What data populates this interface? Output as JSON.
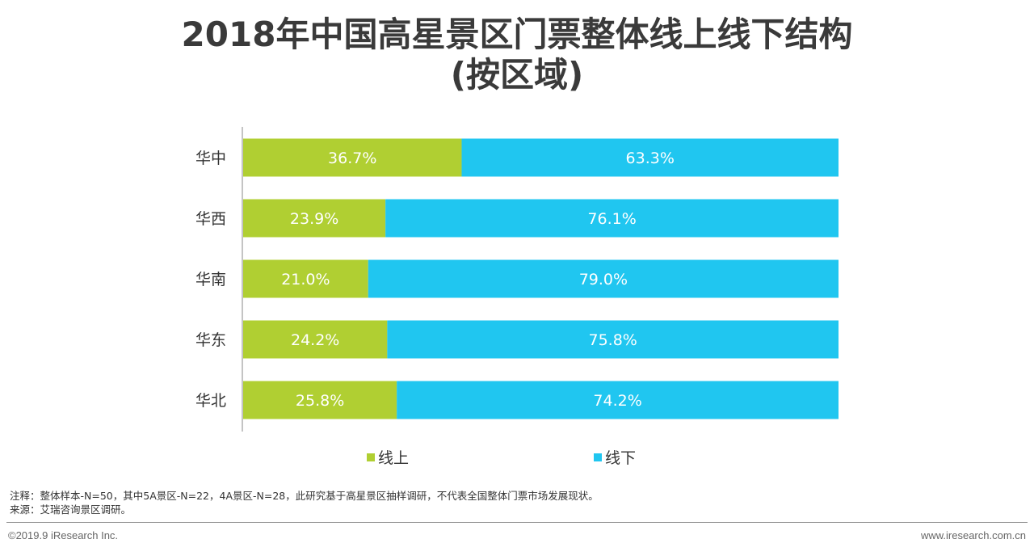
{
  "title_lines": [
    "2018年中国高星景区门票整体线上线下结构",
    "(按区域)"
  ],
  "chart_data": {
    "type": "bar",
    "orientation": "horizontal",
    "stacked": true,
    "percent_stacked": true,
    "categories": [
      "华中",
      "华西",
      "华南",
      "华东",
      "华北"
    ],
    "series": [
      {
        "name": "线上",
        "color": "#b0cf32",
        "values": [
          36.7,
          23.9,
          21.0,
          24.2,
          25.8
        ],
        "labels": [
          "36.7%",
          "23.9%",
          "21.0%",
          "24.2%",
          "25.8%"
        ]
      },
      {
        "name": "线下",
        "color": "#20c6f0",
        "values": [
          63.3,
          76.1,
          79.0,
          75.8,
          74.2
        ],
        "labels": [
          "63.3%",
          "76.1%",
          "79.0%",
          "75.8%",
          "74.2%"
        ]
      }
    ],
    "xlim": [
      0,
      100
    ],
    "legend_position": "bottom",
    "grid": false
  },
  "notes": {
    "note": "注释：整体样本-N=50，其中5A景区-N=22，4A景区-N=28，此研究基于高星景区抽样调研，不代表全国整体门票市场发展现状。",
    "source": "来源：艾瑞咨询景区调研。"
  },
  "footer": {
    "copyright": "©2019.9 iResearch Inc.",
    "website": "www.iresearch.com.cn"
  }
}
